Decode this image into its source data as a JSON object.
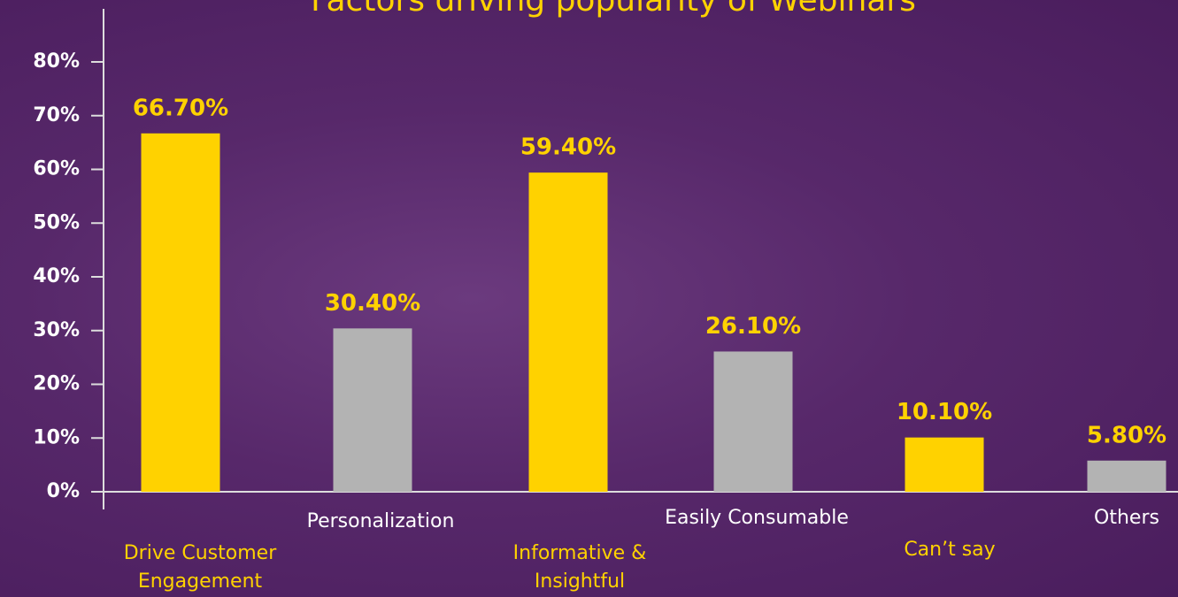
{
  "chart_data": {
    "type": "bar",
    "title": "Factors driving popularity of Webinars",
    "categories": [
      "Drive Customer Engagement",
      "Personalization",
      "Informative & Insightful",
      "Easily Consumable",
      "Can’t say",
      "Others"
    ],
    "values": [
      66.7,
      30.4,
      59.4,
      26.1,
      10.1,
      5.8
    ],
    "value_labels": [
      "66.70%",
      "30.40%",
      "59.40%",
      "26.10%",
      "10.10%",
      "5.80%"
    ],
    "colors": [
      "#ffd200",
      "#b3b3b3",
      "#ffd200",
      "#b3b3b3",
      "#ffd200",
      "#b3b3b3"
    ],
    "ylim": [
      0,
      80
    ],
    "yticks": [
      {
        "value": 0,
        "label": "0%"
      },
      {
        "value": 10,
        "label": "10%"
      },
      {
        "value": 20,
        "label": "20%"
      },
      {
        "value": 30,
        "label": "30%"
      },
      {
        "value": 40,
        "label": "40%"
      },
      {
        "value": 50,
        "label": "50%"
      },
      {
        "value": 60,
        "label": "60%"
      },
      {
        "value": 70,
        "label": "70%"
      },
      {
        "value": 80,
        "label": "80%"
      }
    ]
  }
}
